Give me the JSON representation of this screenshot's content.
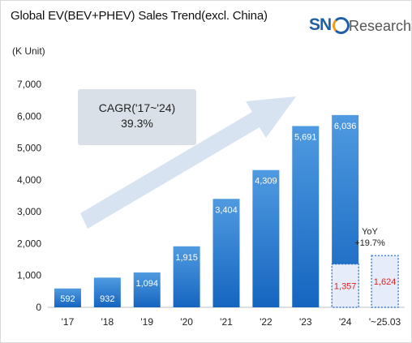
{
  "header": {
    "title": "Global EV(BEV+PHEV) Sales Trend(excl. China)",
    "unit": "(K Unit)"
  },
  "logo": {
    "sne": "SN",
    "rest": "Research"
  },
  "annotation": {
    "line1": "CAGR('17~'24)",
    "line2": "39.3%"
  },
  "yoy": {
    "line1": "YoY",
    "line2": "+19.7%"
  },
  "colors": {
    "bar_top": "#4f9ae0",
    "bar_bottom": "#1565c0",
    "partial_fill": "#e6ecfa",
    "partial_border": "#1565c0",
    "partial_label": "#e02020",
    "arrow": "#d7e3f1",
    "annotation_box": "#d9e0e7"
  },
  "chart_data": {
    "type": "bar",
    "title": "Global EV(BEV+PHEV) Sales Trend(excl. China)",
    "ylabel": "(K Unit)",
    "ylim": [
      0,
      7000
    ],
    "yticks": [
      "0",
      "1,000",
      "2,000",
      "3,000",
      "4,000",
      "5,000",
      "6,000",
      "7,000"
    ],
    "categories": [
      "'17",
      "'18",
      "'19",
      "'20",
      "'21",
      "'22",
      "'23",
      "'24",
      "'~25.03"
    ],
    "series": [
      {
        "values": [
          592,
          932,
          1094,
          1915,
          3404,
          4309,
          5691,
          6036,
          null
        ],
        "labels": [
          "592",
          "932",
          "1,094",
          "1,915",
          "3,404",
          "4,309",
          "5,691",
          "6,036",
          ""
        ]
      },
      {
        "values": [
          null,
          null,
          null,
          null,
          null,
          null,
          null,
          1357,
          1624
        ],
        "labels": [
          "",
          "",
          "",
          "",
          "",
          "",
          "",
          "1,357",
          "1,624"
        ]
      }
    ],
    "grid": false
  }
}
